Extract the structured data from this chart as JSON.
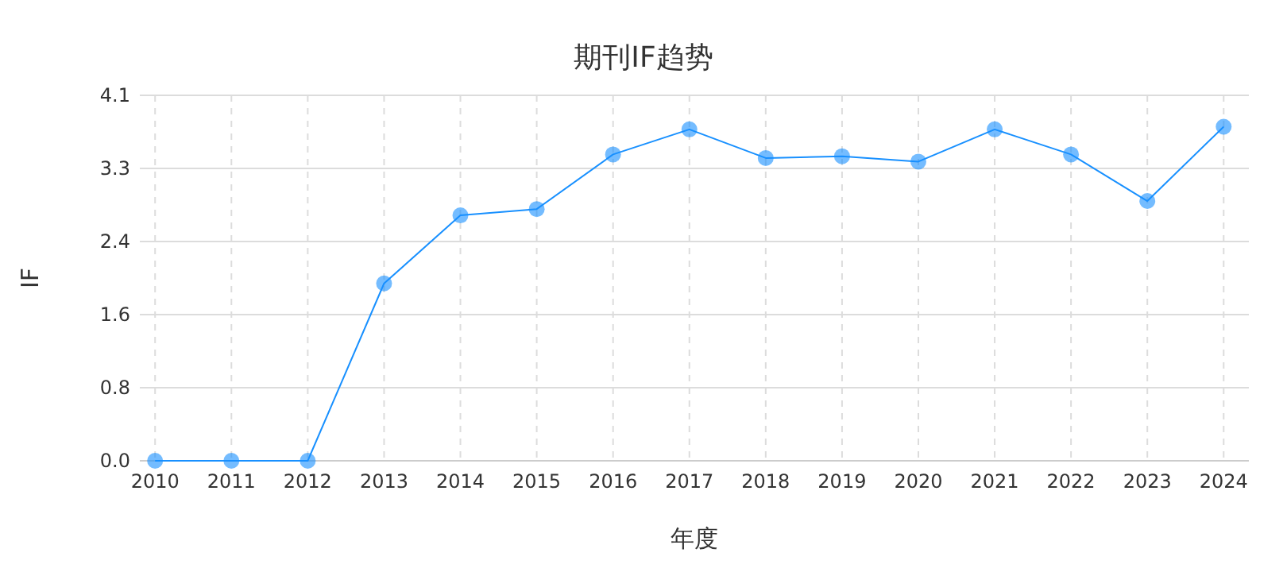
{
  "chart_data": {
    "type": "line",
    "title": "期刊IF趋势",
    "xlabel": "年度",
    "ylabel": "IF",
    "categories": [
      "2010",
      "2011",
      "2012",
      "2013",
      "2014",
      "2015",
      "2016",
      "2017",
      "2018",
      "2019",
      "2020",
      "2021",
      "2022",
      "2023",
      "2024"
    ],
    "series": [
      {
        "color": "#1890ff",
        "values": [
          0,
          0,
          0,
          1.98,
          2.74,
          2.81,
          3.42,
          3.7,
          3.38,
          3.4,
          3.34,
          3.7,
          3.42,
          2.9,
          3.73
        ]
      }
    ],
    "ylim": [
      0,
      4.08
    ],
    "yticks": [
      {
        "value": 0,
        "label": "0.0"
      },
      {
        "value": 0.816,
        "label": "0.8"
      },
      {
        "value": 1.632,
        "label": "1.6"
      },
      {
        "value": 2.448,
        "label": "2.4"
      },
      {
        "value": 3.264,
        "label": "3.3"
      },
      {
        "value": 4.08,
        "label": "4.1"
      }
    ],
    "grid": true,
    "marker": "circle",
    "line_style": "solid"
  }
}
